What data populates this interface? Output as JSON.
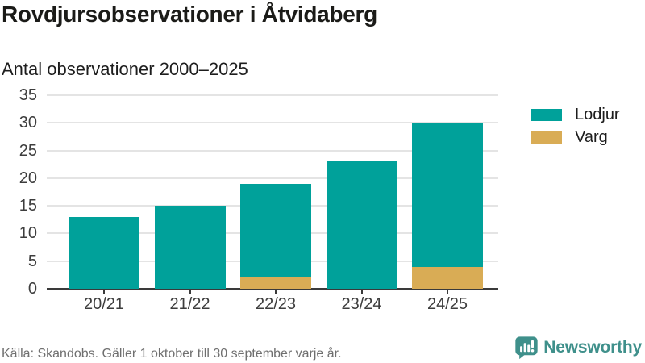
{
  "header": {
    "title": "Rovdjursobservationer i Åtvidaberg",
    "subtitle": "Antal observationer 2000–2025"
  },
  "chart_data": {
    "type": "bar",
    "stacked": true,
    "categories": [
      "20/21",
      "21/22",
      "22/23",
      "23/24",
      "24/25"
    ],
    "series": [
      {
        "name": "Lodjur",
        "color": "#00a19a",
        "values": [
          13,
          15,
          17,
          23,
          26
        ]
      },
      {
        "name": "Varg",
        "color": "#d9ac55",
        "values": [
          0,
          0,
          2,
          0,
          4
        ]
      }
    ],
    "stack_totals": [
      13,
      15,
      19,
      23,
      30
    ],
    "ylim": [
      0,
      35
    ],
    "yticks": [
      0,
      5,
      10,
      15,
      20,
      25,
      30,
      35
    ],
    "grid": true,
    "legend_position": "right",
    "xlabel": "",
    "ylabel": ""
  },
  "footer": {
    "source": "Källa: Skandobs. Gäller 1 oktober till 30 september varje år.",
    "brand": "Newsworthy",
    "brand_icon": "speech-bubble-bar-chart-icon"
  },
  "colors": {
    "lodjur": "#00a19a",
    "varg": "#d9ac55",
    "brand_teal": "#3f908b",
    "axis": "#3a3a3a",
    "grid": "#e4e4e4",
    "text_dark": "#1b1b18",
    "text_muted": "#6f6f6f"
  }
}
